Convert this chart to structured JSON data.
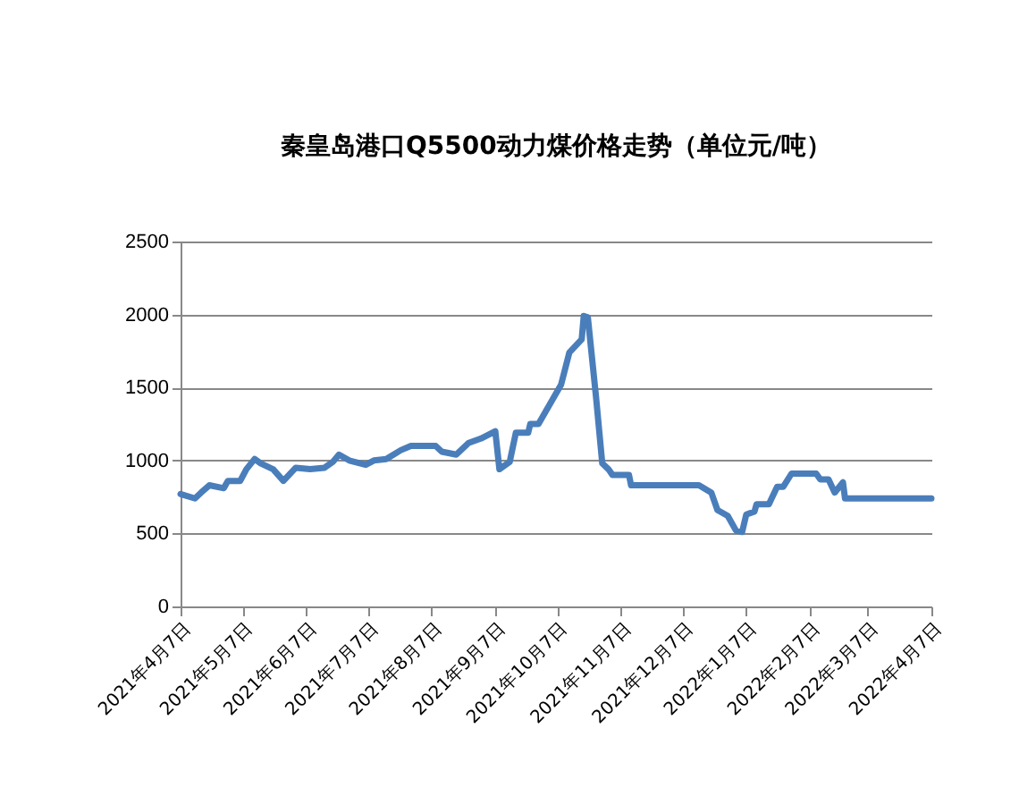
{
  "chart_data": {
    "type": "line",
    "title": "秦皇岛港口Q5500动力煤价格走势（单位元/吨）",
    "x": [
      "2021-04-07",
      "2021-04-14",
      "2021-04-17",
      "2021-04-21",
      "2021-04-28",
      "2021-04-30",
      "2021-05-06",
      "2021-05-09",
      "2021-05-13",
      "2021-05-16",
      "2021-05-22",
      "2021-05-27",
      "2021-06-02",
      "2021-06-09",
      "2021-06-16",
      "2021-06-20",
      "2021-06-23",
      "2021-06-28",
      "2021-07-06",
      "2021-07-10",
      "2021-07-16",
      "2021-07-23",
      "2021-07-28",
      "2021-08-09",
      "2021-08-12",
      "2021-08-19",
      "2021-08-25",
      "2021-08-31",
      "2021-09-07",
      "2021-09-09",
      "2021-09-14",
      "2021-09-17",
      "2021-09-23",
      "2021-09-24",
      "2021-09-28",
      "2021-10-09",
      "2021-10-13",
      "2021-10-19",
      "2021-10-20",
      "2021-10-22",
      "2021-10-26",
      "2021-10-29",
      "2021-11-01",
      "2021-11-03",
      "2021-11-11",
      "2021-11-12",
      "2021-12-15",
      "2021-12-21",
      "2021-12-24",
      "2021-12-29",
      "2022-01-02",
      "2022-01-05",
      "2022-01-07",
      "2022-01-11",
      "2022-01-12",
      "2022-01-18",
      "2022-01-22",
      "2022-01-25",
      "2022-01-29",
      "2022-02-10",
      "2022-02-12",
      "2022-02-16",
      "2022-02-19",
      "2022-02-23",
      "2022-02-24",
      "2022-04-07"
    ],
    "series": [
      {
        "color": "#4a7ebb",
        "values": [
          770,
          740,
          780,
          830,
          810,
          860,
          860,
          940,
          1010,
          980,
          940,
          860,
          950,
          940,
          950,
          990,
          1040,
          1000,
          970,
          1000,
          1010,
          1070,
          1100,
          1100,
          1060,
          1040,
          1120,
          1150,
          1200,
          940,
          990,
          1190,
          1190,
          1250,
          1250,
          1520,
          1740,
          1830,
          1990,
          1980,
          1430,
          980,
          940,
          900,
          900,
          830,
          830,
          780,
          660,
          620,
          520,
          510,
          630,
          650,
          700,
          700,
          820,
          820,
          910,
          910,
          870,
          870,
          780,
          850,
          740,
          740
        ]
      }
    ],
    "xlim": [
      "2021-04-07",
      "2022-04-07"
    ],
    "xticks": [
      {
        "value": "2021-04-07",
        "label": "2021年4月7日"
      },
      {
        "value": "2021-05-07",
        "label": "2021年5月7日"
      },
      {
        "value": "2021-06-07",
        "label": "2021年6月7日"
      },
      {
        "value": "2021-07-07",
        "label": "2021年7月7日"
      },
      {
        "value": "2021-08-07",
        "label": "2021年8月7日"
      },
      {
        "value": "2021-09-07",
        "label": "2021年9月7日"
      },
      {
        "value": "2021-10-07",
        "label": "2021年10月7日"
      },
      {
        "value": "2021-11-07",
        "label": "2021年11月7日"
      },
      {
        "value": "2021-12-07",
        "label": "2021年12月7日"
      },
      {
        "value": "2022-01-07",
        "label": "2022年1月7日"
      },
      {
        "value": "2022-02-07",
        "label": "2022年2月7日"
      },
      {
        "value": "2022-03-07",
        "label": "2022年3月7日"
      },
      {
        "value": "2022-04-07",
        "label": "2022年4月7日"
      }
    ],
    "ylim": [
      0,
      2500
    ],
    "yticks": [
      0,
      500,
      1000,
      1500,
      2000,
      2500
    ],
    "grid": "y",
    "marker": "none",
    "line_style": "solid"
  }
}
